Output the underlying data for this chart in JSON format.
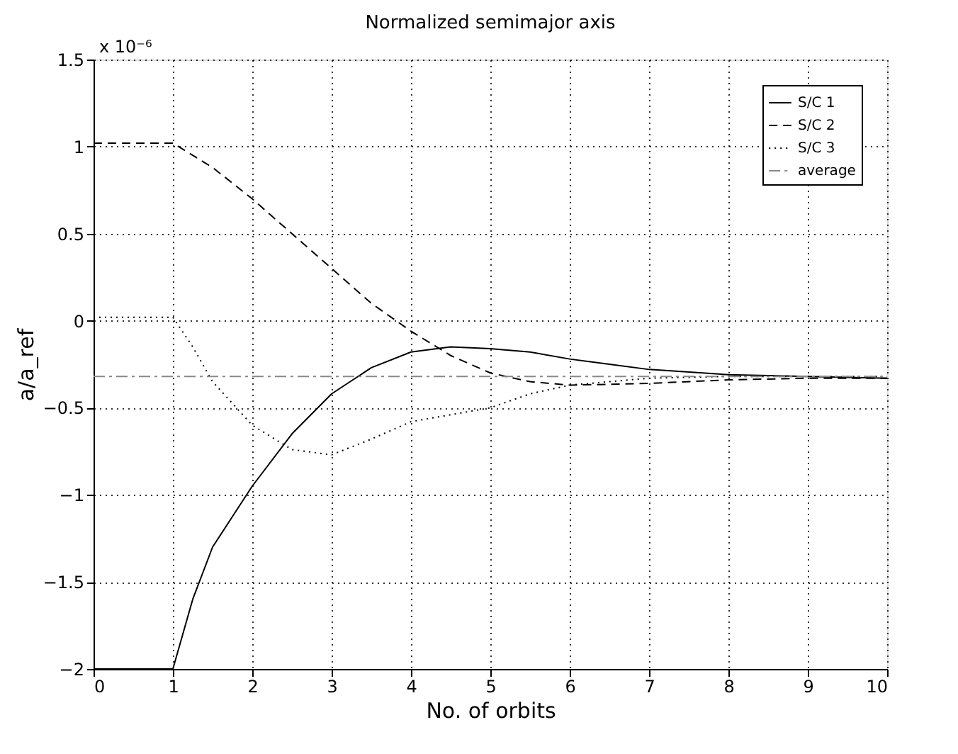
{
  "chart_data": {
    "type": "line",
    "title": "Normalized semimajor axis",
    "xlabel": "No. of orbits",
    "ylabel": "a/a_ref",
    "annotations": [
      "x 10⁻⁶"
    ],
    "xlim": [
      0,
      10
    ],
    "xticks": [
      0,
      1,
      2,
      3,
      4,
      5,
      6,
      7,
      8,
      9,
      10
    ],
    "ylim": [
      -2,
      1.5
    ],
    "yticks": [
      -2,
      -1.5,
      -1,
      -0.5,
      0,
      0.5,
      1,
      1.5
    ],
    "grid": true,
    "legend": "top right",
    "marker": "none",
    "series": [
      {
        "name": "S/C 1",
        "color": "#000000",
        "line_style": "solid",
        "x": [
          0,
          1,
          1.25,
          1.5,
          2,
          2.5,
          3,
          3.5,
          4,
          4.5,
          5,
          5.5,
          6,
          6.5,
          7,
          8,
          9,
          10
        ],
        "values": [
          -2,
          -2,
          -1.6,
          -1.3,
          -0.95,
          -0.65,
          -0.42,
          -0.27,
          -0.18,
          -0.15,
          -0.16,
          -0.18,
          -0.22,
          -0.25,
          -0.28,
          -0.31,
          -0.32,
          -0.33
        ]
      },
      {
        "name": "S/C 2",
        "color": "#000000",
        "line_style": "dashed",
        "x": [
          0,
          1,
          1.5,
          2,
          2.5,
          3,
          3.5,
          4,
          4.5,
          5,
          5.5,
          6,
          7,
          8,
          9,
          10
        ],
        "values": [
          1.02,
          1.02,
          0.88,
          0.7,
          0.5,
          0.3,
          0.1,
          -0.06,
          -0.2,
          -0.3,
          -0.35,
          -0.37,
          -0.36,
          -0.34,
          -0.33,
          -0.33
        ]
      },
      {
        "name": "S/C 3",
        "color": "#000000",
        "line_style": "dotted",
        "x": [
          0,
          1,
          1.25,
          1.5,
          2,
          2.5,
          3,
          3.5,
          4,
          5,
          5.5,
          6,
          7,
          8,
          10
        ],
        "values": [
          0.02,
          0.02,
          -0.15,
          -0.35,
          -0.6,
          -0.74,
          -0.77,
          -0.68,
          -0.58,
          -0.5,
          -0.42,
          -0.37,
          -0.33,
          -0.32,
          -0.32
        ]
      },
      {
        "name": "average",
        "color": "#888888",
        "line_style": "dashdot",
        "x": [
          0,
          10
        ],
        "values": [
          -0.32,
          -0.32
        ]
      }
    ]
  }
}
